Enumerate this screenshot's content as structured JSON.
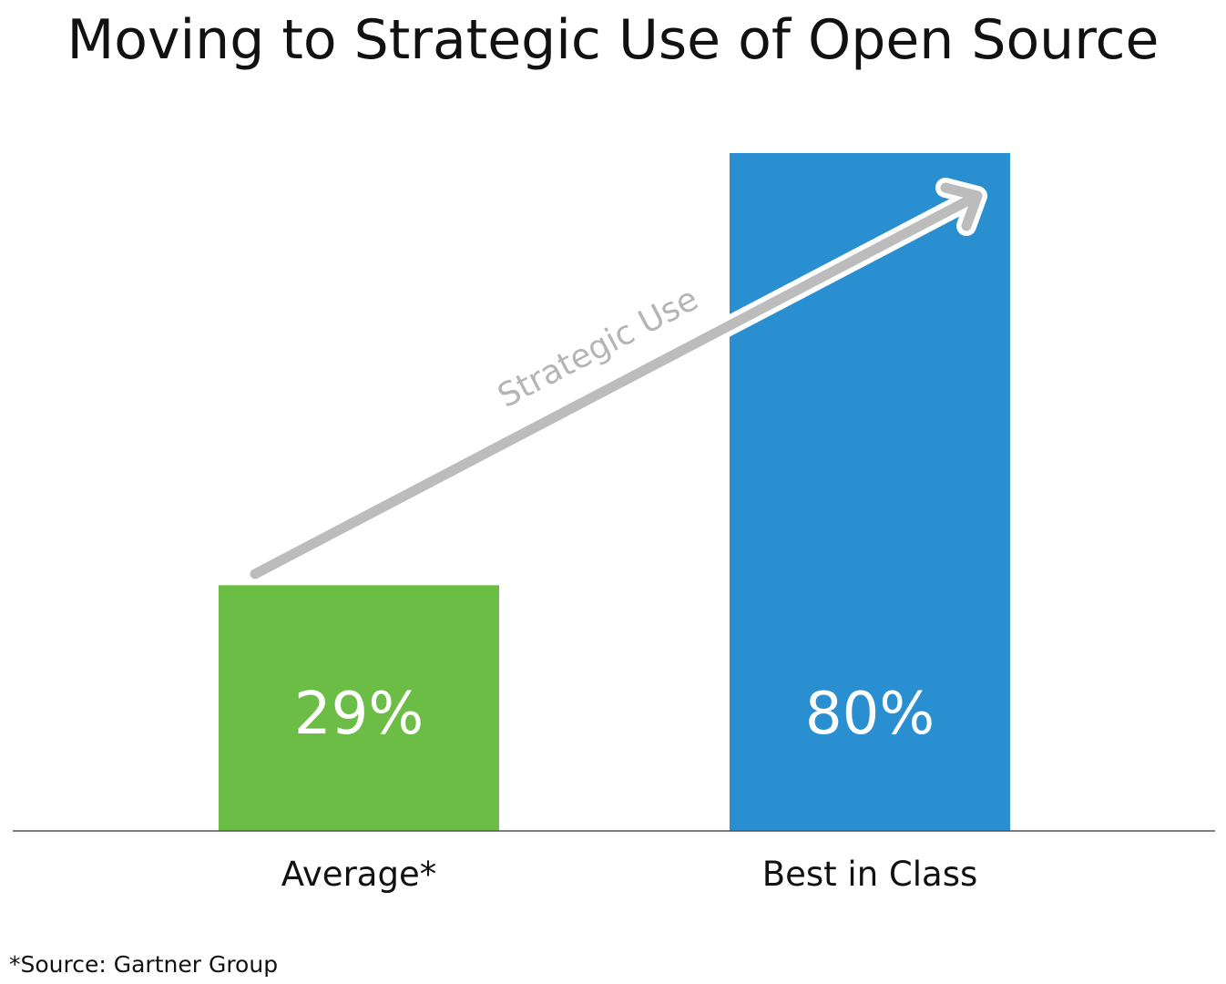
{
  "chart_data": {
    "type": "bar",
    "title": "Moving to Strategic Use of Open Source",
    "categories": [
      "Average*",
      "Best in Class"
    ],
    "values": [
      29,
      80
    ],
    "value_labels": [
      "29%",
      "80%"
    ],
    "bar_colors": [
      "#6cbd45",
      "#2a8fd0"
    ],
    "ylim": [
      0,
      100
    ],
    "grid": false,
    "annotation": {
      "label": "Strategic Use",
      "color": "#bcbcbc"
    },
    "source_note": "*Source: Gartner Group"
  }
}
